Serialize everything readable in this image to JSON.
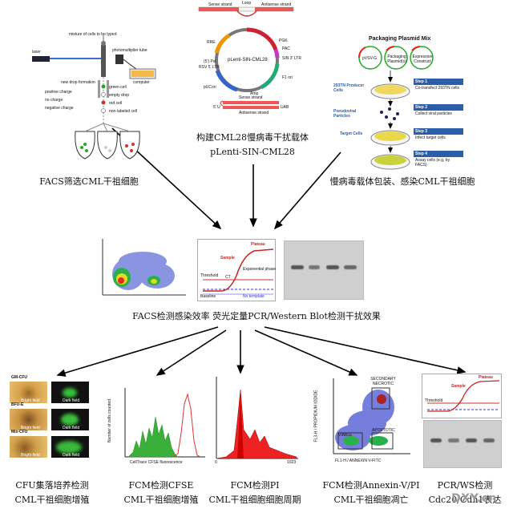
{
  "top": {
    "facs_sort": {
      "caption": "FACS筛选CML干祖细胞",
      "labels": [
        "laser",
        "photomultiplier tube",
        "computer",
        "electrical\ncharge",
        "no charge",
        "positive charge",
        "negative charge",
        "green cell",
        "red cell",
        "empty drop",
        "non-labeled cell",
        "mixture of cells to be typed",
        "new drop formation"
      ]
    },
    "vector": {
      "caption_line1": "构建CML28慢病毒干扰载体",
      "caption_line2": "pLenti-SIN-CML28",
      "labels": [
        "Sense strand",
        "Loop",
        "Antisense strand",
        "pLenti-SIN-CML28",
        "RRE",
        "(5') Psi",
        "RSV 5' LTR",
        "pUCori",
        "PGK",
        "PAC",
        "SIN 3' LTR",
        "F1 ori",
        "Amp",
        "Sense strand",
        "Antisense strand",
        "5' U",
        "UAB"
      ]
    },
    "packaging": {
      "caption": "慢病毒载体包装、感染CML干祖细胞",
      "title": "Packaging Plasmid Mix",
      "plasmids": [
        "pVSV-G",
        "Packaging Plasmid(s)",
        "Expression Construct"
      ],
      "side_labels": [
        "293TN Producer Cells",
        "Pseudoviral Particles",
        "Target Cells"
      ],
      "steps": [
        {
          "title": "Step 1",
          "text": "Co-transfect 293TN cells"
        },
        {
          "title": "Step 2",
          "text": "Collect viral particles"
        },
        {
          "title": "Step 3",
          "text": "Infect target cells"
        },
        {
          "title": "Step 4",
          "text": "Assay cells (e.g. by FACS)"
        }
      ]
    }
  },
  "middle": {
    "caption": "FACS检测感染效率   荧光定量PCR/Western Blot检测干扰效果",
    "pcr_labels": [
      "Plateau",
      "Sample",
      "Exponential phase",
      "Threshold",
      "CT",
      "Baseline",
      "No template"
    ]
  },
  "bottom": {
    "cfu": {
      "caption_line1": "CFU集落培养检测",
      "caption_line2": "CML干祖细胞增殖",
      "rows": [
        "GM-CFU",
        "BFU-E",
        "Mix-CFU"
      ],
      "bright": "Bright field",
      "dark": "Dark field"
    },
    "cfse": {
      "caption_line1": "FCM检测CFSE",
      "caption_line2": "CML干祖细胞增殖",
      "ylabel": "Number of cells counted",
      "xlabel": "CellTrace CFSE fluorescence"
    },
    "pi": {
      "caption_line1": "FCM检测PI",
      "caption_line2": "CML干祖细胞细胞周期",
      "xticks": [
        "0",
        "1023"
      ]
    },
    "annexin": {
      "caption_line1": "FCM检测Annexin-V/PI",
      "caption_line2": "CML干祖细胞凋亡",
      "ylabel": "FL3-H / PROPIDIUM IODIDE",
      "xlabel": "FL1-H / ANNEXIN V-FITC",
      "regions": [
        "SECONDARY NECROTIC",
        "APOPTOTIC",
        "VIABLE"
      ]
    },
    "pcr_ws": {
      "caption_line1": "PCR/WS检测",
      "caption_line2": "Cdc20/Cdh1表达"
    }
  },
  "watermark": "DXY.cn"
}
